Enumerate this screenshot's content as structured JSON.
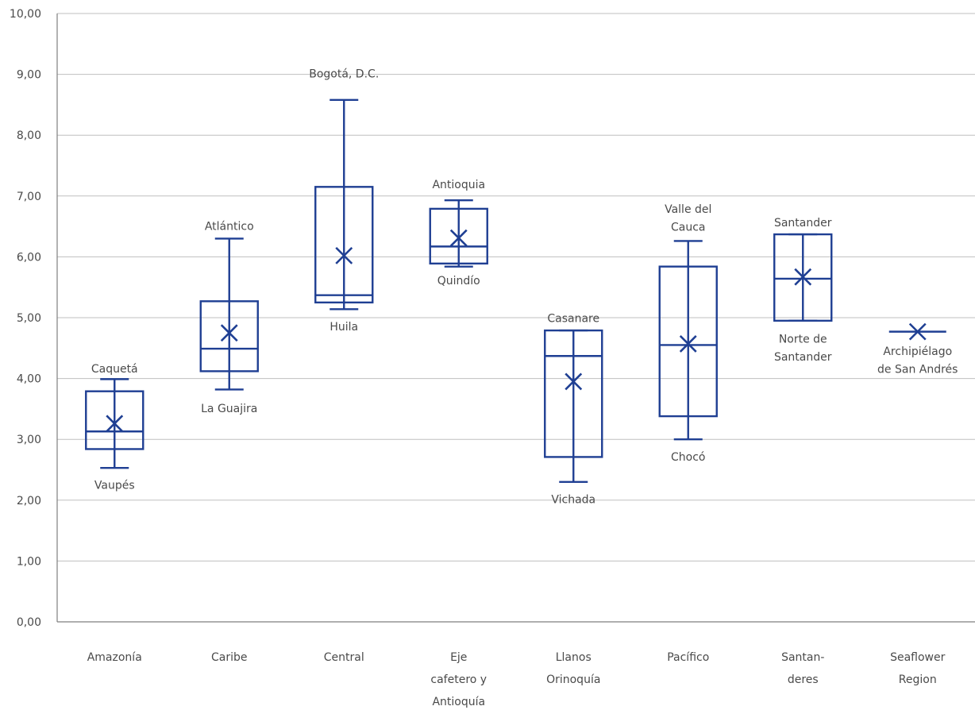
{
  "chart_data": {
    "type": "box",
    "ylim": [
      0,
      10
    ],
    "y_ticks": [
      "0,00",
      "1,00",
      "2,00",
      "3,00",
      "4,00",
      "5,00",
      "6,00",
      "7,00",
      "8,00",
      "9,00",
      "10,00"
    ],
    "grid": true,
    "colors": {
      "box": "#1f3f93",
      "grid": "#bfbfbf",
      "text": "#4a4a4a"
    },
    "categories": [
      {
        "label_lines": [
          "Amazonía"
        ],
        "min": 2.53,
        "q1": 2.84,
        "median": 3.13,
        "q3": 3.79,
        "max": 3.99,
        "mean": 3.26,
        "annotations": [
          {
            "text_lines": [
              "Caquetá"
            ],
            "at": 4.1,
            "anchor": "above"
          },
          {
            "text_lines": [
              "Vaupés"
            ],
            "at": 2.32,
            "anchor": "below"
          }
        ]
      },
      {
        "label_lines": [
          "Caribe"
        ],
        "min": 3.82,
        "q1": 4.12,
        "median": 4.49,
        "q3": 5.27,
        "max": 6.3,
        "mean": 4.75,
        "annotations": [
          {
            "text_lines": [
              "Atlántico"
            ],
            "at": 6.44,
            "anchor": "above"
          },
          {
            "text_lines": [
              "La Guajira"
            ],
            "at": 3.58,
            "anchor": "below"
          }
        ]
      },
      {
        "label_lines": [
          "Central"
        ],
        "min": 5.14,
        "q1": 5.25,
        "median": 5.37,
        "q3": 7.15,
        "max": 8.58,
        "mean": 6.02,
        "annotations": [
          {
            "text_lines": [
              "Bogotá, D.C."
            ],
            "at": 8.95,
            "anchor": "above"
          },
          {
            "text_lines": [
              "Huila"
            ],
            "at": 4.92,
            "anchor": "below"
          }
        ]
      },
      {
        "label_lines": [
          "Eje",
          "cafetero y",
          "Antioquía"
        ],
        "min": 5.84,
        "q1": 5.89,
        "median": 6.17,
        "q3": 6.79,
        "max": 6.93,
        "mean": 6.31,
        "annotations": [
          {
            "text_lines": [
              "Antioquia"
            ],
            "at": 7.13,
            "anchor": "above"
          },
          {
            "text_lines": [
              "Quindío"
            ],
            "at": 5.68,
            "anchor": "below"
          }
        ]
      },
      {
        "label_lines": [
          "Llanos",
          "Orinoquía"
        ],
        "min": 2.3,
        "q1": 2.71,
        "median": 4.37,
        "q3": 4.79,
        "max": 4.79,
        "mean": 3.95,
        "annotations": [
          {
            "text_lines": [
              "Casanare"
            ],
            "at": 4.93,
            "anchor": "above"
          },
          {
            "text_lines": [
              "Vichada"
            ],
            "at": 2.08,
            "anchor": "below"
          }
        ]
      },
      {
        "label_lines": [
          "Pacífico"
        ],
        "min": 3.0,
        "q1": 3.38,
        "median": 4.55,
        "q3": 5.84,
        "max": 6.26,
        "mean": 4.57,
        "annotations": [
          {
            "text_lines": [
              "Valle del",
              "Cauca"
            ],
            "at": 6.43,
            "anchor": "above"
          },
          {
            "text_lines": [
              "Chocó"
            ],
            "at": 2.78,
            "anchor": "below"
          }
        ]
      },
      {
        "label_lines": [
          "Santan-",
          "deres"
        ],
        "min": 4.95,
        "q1": 4.95,
        "median": 5.64,
        "q3": 6.37,
        "max": 6.37,
        "mean": 5.67,
        "annotations": [
          {
            "text_lines": [
              "Santander"
            ],
            "at": 6.5,
            "anchor": "above"
          },
          {
            "text_lines": [
              "Norte de",
              "Santander"
            ],
            "at": 4.72,
            "anchor": "below"
          }
        ]
      },
      {
        "label_lines": [
          "Seaflower",
          "Region"
        ],
        "min": 4.77,
        "q1": 4.77,
        "median": 4.77,
        "q3": 4.77,
        "max": 4.77,
        "mean": 4.77,
        "annotations": [
          {
            "text_lines": [
              "Archipiélago",
              "de San Andrés"
            ],
            "at": 4.52,
            "anchor": "below"
          }
        ]
      }
    ]
  }
}
